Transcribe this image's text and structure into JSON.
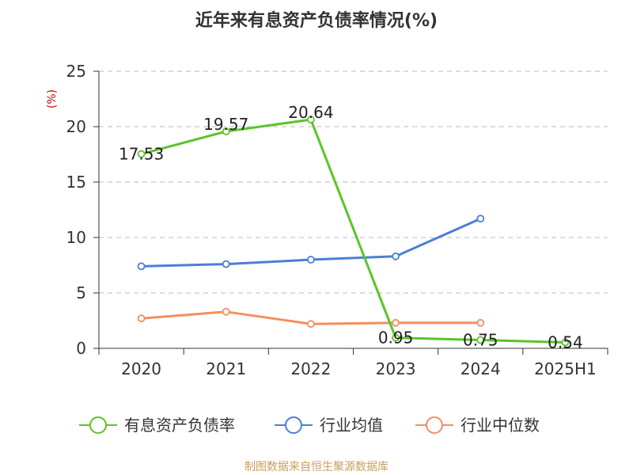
{
  "chart_data": {
    "type": "line",
    "title": "近年来有息资产负债率情况(%)",
    "ylabel": "(%)",
    "xlabel": "",
    "categories": [
      "2020",
      "2021",
      "2022",
      "2023",
      "2024",
      "2025H1"
    ],
    "ylim": [
      0,
      25
    ],
    "yticks": [
      0,
      5,
      10,
      15,
      20,
      25
    ],
    "grid": true,
    "legend_position": "bottom",
    "series": [
      {
        "name": "有息资产负债率",
        "color": "#5ac52a",
        "values": [
          17.53,
          19.57,
          20.64,
          0.95,
          0.75,
          0.54
        ],
        "labels": [
          "17.53",
          "19.57",
          "20.64",
          "0.95",
          "0.75",
          "0.54"
        ]
      },
      {
        "name": "行业均值",
        "color": "#4a7fd6",
        "values": [
          7.4,
          7.6,
          8.0,
          8.3,
          11.7,
          null
        ]
      },
      {
        "name": "行业中位数",
        "color": "#f58e5e",
        "values": [
          2.7,
          3.3,
          2.2,
          2.3,
          2.3,
          null
        ]
      }
    ]
  },
  "source": "制图数据来自恒生聚源数据库"
}
